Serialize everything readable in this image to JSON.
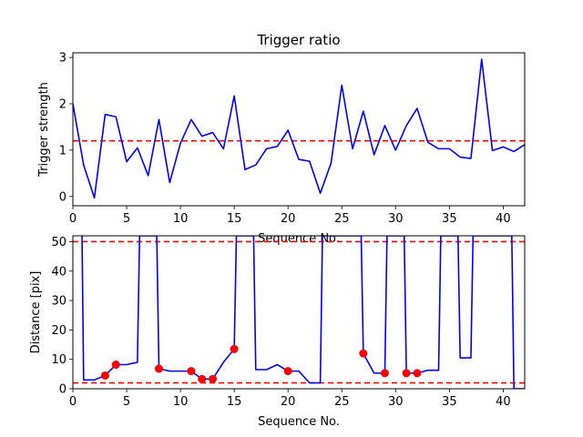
{
  "chart_data": [
    {
      "type": "line",
      "title": "Trigger ratio",
      "xlabel": "Sequence No.",
      "ylabel": "Trigger strength",
      "xlim": [
        0,
        42
      ],
      "ylim": [
        -0.2,
        3.1
      ],
      "xticks": [
        0,
        5,
        10,
        15,
        20,
        25,
        30,
        35,
        40
      ],
      "yticks": [
        0,
        1,
        2,
        3
      ],
      "grid": false,
      "threshold_lines": [
        1.2
      ],
      "series": [
        {
          "color": "#0000ff",
          "x": [
            0,
            1,
            2,
            3,
            4,
            5,
            6,
            7,
            8,
            9,
            10,
            11,
            12,
            13,
            14,
            15,
            16,
            17,
            18,
            19,
            20,
            21,
            22,
            23,
            24,
            25,
            26,
            27,
            28,
            29,
            30,
            31,
            32,
            33,
            34,
            35,
            36,
            37,
            38,
            39,
            40,
            41,
            42
          ],
          "y": [
            2.0,
            0.68,
            -0.03,
            1.77,
            1.72,
            0.75,
            1.05,
            0.45,
            1.66,
            0.3,
            1.15,
            1.66,
            1.3,
            1.38,
            1.03,
            2.17,
            0.58,
            0.68,
            1.03,
            1.08,
            1.43,
            0.8,
            0.76,
            0.07,
            0.72,
            2.4,
            1.03,
            1.84,
            0.9,
            1.53,
            1.0,
            1.53,
            1.9,
            1.17,
            1.03,
            1.03,
            0.85,
            0.82,
            2.96,
            0.99,
            1.07,
            0.97,
            1.12
          ]
        }
      ]
    },
    {
      "type": "line",
      "title": "",
      "xlabel": "Sequence No.",
      "ylabel": "Distance [pix]",
      "xlim": [
        0,
        42
      ],
      "ylim": [
        0,
        52
      ],
      "xticks": [
        0,
        5,
        10,
        15,
        20,
        25,
        30,
        35,
        40
      ],
      "yticks": [
        0,
        10,
        20,
        30,
        40,
        50
      ],
      "grid": false,
      "threshold_lines": [
        50,
        2
      ],
      "series": [
        {
          "color": "#0000ff",
          "x": [
            0.85,
            1,
            2,
            3,
            4,
            5,
            6,
            6.2,
            7.8,
            8,
            9,
            10,
            11,
            12,
            13,
            14,
            15,
            15.2,
            16.8,
            17,
            18,
            19,
            20,
            21,
            22,
            23,
            23.2,
            26.8,
            27,
            28,
            29,
            29.2,
            30.8,
            31,
            32,
            33,
            34,
            34.2,
            35.8,
            36,
            37,
            37.2,
            40.8,
            41,
            42
          ],
          "y": [
            52,
            3,
            3,
            4.5,
            8.2,
            8.2,
            9,
            52,
            52,
            6.8,
            6,
            6,
            6,
            3.3,
            3.3,
            9,
            13.5,
            52,
            52,
            6.5,
            6.5,
            8.2,
            6,
            6,
            2,
            2,
            52,
            52,
            12,
            5.3,
            5.3,
            52,
            52,
            5.3,
            5.3,
            6.3,
            6.3,
            52,
            52,
            10.5,
            10.5,
            52,
            52,
            0,
            0
          ]
        }
      ],
      "markers": {
        "color": "#ff0000",
        "points": [
          [
            3,
            4.5
          ],
          [
            4,
            8.2
          ],
          [
            8,
            6.8
          ],
          [
            11,
            6
          ],
          [
            12,
            3.3
          ],
          [
            13,
            3.3
          ],
          [
            15,
            13.5
          ],
          [
            20,
            6
          ],
          [
            27,
            12
          ],
          [
            29,
            5.3
          ],
          [
            31,
            5.3
          ],
          [
            32,
            5.3
          ]
        ]
      }
    }
  ]
}
